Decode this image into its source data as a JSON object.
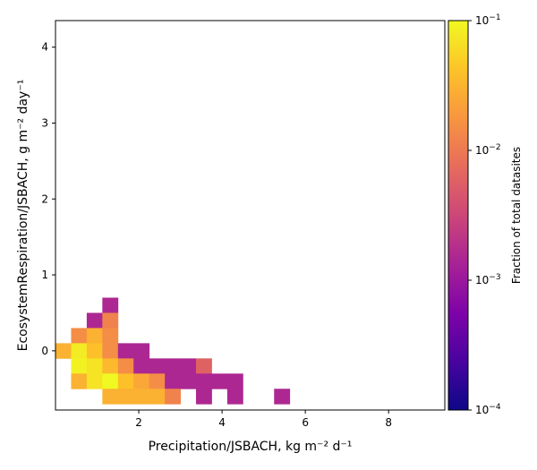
{
  "chart_data": {
    "type": "heatmap",
    "xlabel": "Precipitation/JSBACH,  kg m⁻² d⁻¹",
    "ylabel": "EcosystemRespiration/JSBACH,  g m⁻² day⁻¹",
    "xlim": [
      0.0,
      9.35
    ],
    "ylim": [
      -0.78,
      4.35
    ],
    "x_ticks": [
      2,
      4,
      6,
      8
    ],
    "x_tick_labels": [
      "2",
      "4",
      "6",
      "8"
    ],
    "y_ticks": [
      0,
      1,
      2,
      3,
      4
    ],
    "y_tick_labels": [
      "0",
      "1",
      "2",
      "3",
      "4"
    ],
    "bin_size": {
      "x": 0.375,
      "y": 0.2
    },
    "colorbar": {
      "label": "Fraction of total datasites",
      "scale": "log",
      "colormap": "plasma",
      "range": [
        0.0001,
        0.1
      ],
      "ticks": [
        0.0001,
        0.001,
        0.01,
        0.1
      ],
      "tick_labels": [
        {
          "base": "10",
          "exp": "−4"
        },
        {
          "base": "10",
          "exp": "−3"
        },
        {
          "base": "10",
          "exp": "−2"
        },
        {
          "base": "10",
          "exp": "−1"
        }
      ]
    },
    "cells": [
      {
        "x": 1.125,
        "y": 0.5,
        "v": 0.0015
      },
      {
        "x": 0.75,
        "y": 0.3,
        "v": 0.0015
      },
      {
        "x": 1.125,
        "y": 0.3,
        "v": 0.012
      },
      {
        "x": 0.375,
        "y": 0.1,
        "v": 0.015
      },
      {
        "x": 0.75,
        "y": 0.1,
        "v": 0.03
      },
      {
        "x": 1.125,
        "y": 0.1,
        "v": 0.015
      },
      {
        "x": 0.0,
        "y": -0.1,
        "v": 0.03
      },
      {
        "x": 0.375,
        "y": -0.1,
        "v": 0.08
      },
      {
        "x": 0.75,
        "y": -0.1,
        "v": 0.04
      },
      {
        "x": 1.125,
        "y": -0.1,
        "v": 0.015
      },
      {
        "x": 1.5,
        "y": -0.1,
        "v": 0.0015
      },
      {
        "x": 1.875,
        "y": -0.1,
        "v": 0.0015
      },
      {
        "x": 0.375,
        "y": -0.3,
        "v": 0.09
      },
      {
        "x": 0.75,
        "y": -0.3,
        "v": 0.07
      },
      {
        "x": 1.125,
        "y": -0.3,
        "v": 0.035
      },
      {
        "x": 1.5,
        "y": -0.3,
        "v": 0.015
      },
      {
        "x": 1.875,
        "y": -0.3,
        "v": 0.0015
      },
      {
        "x": 2.25,
        "y": -0.3,
        "v": 0.0015
      },
      {
        "x": 2.625,
        "y": -0.3,
        "v": 0.0015
      },
      {
        "x": 3.0,
        "y": -0.3,
        "v": 0.0015
      },
      {
        "x": 3.375,
        "y": -0.3,
        "v": 0.006
      },
      {
        "x": 0.375,
        "y": -0.5,
        "v": 0.03
      },
      {
        "x": 0.75,
        "y": -0.5,
        "v": 0.07
      },
      {
        "x": 1.125,
        "y": -0.5,
        "v": 0.1
      },
      {
        "x": 1.5,
        "y": -0.5,
        "v": 0.04
      },
      {
        "x": 1.875,
        "y": -0.5,
        "v": 0.025
      },
      {
        "x": 2.25,
        "y": -0.5,
        "v": 0.015
      },
      {
        "x": 2.625,
        "y": -0.5,
        "v": 0.0015
      },
      {
        "x": 3.0,
        "y": -0.5,
        "v": 0.0015
      },
      {
        "x": 3.375,
        "y": -0.5,
        "v": 0.0015
      },
      {
        "x": 3.75,
        "y": -0.5,
        "v": 0.0015
      },
      {
        "x": 4.125,
        "y": -0.5,
        "v": 0.0015
      },
      {
        "x": 1.125,
        "y": -0.7,
        "v": 0.03
      },
      {
        "x": 1.5,
        "y": -0.7,
        "v": 0.03
      },
      {
        "x": 1.875,
        "y": -0.7,
        "v": 0.03
      },
      {
        "x": 2.25,
        "y": -0.7,
        "v": 0.03
      },
      {
        "x": 2.625,
        "y": -0.7,
        "v": 0.012
      },
      {
        "x": 3.375,
        "y": -0.7,
        "v": 0.0015
      },
      {
        "x": 4.125,
        "y": -0.7,
        "v": 0.0015
      },
      {
        "x": 5.25,
        "y": -0.7,
        "v": 0.0015
      }
    ]
  }
}
